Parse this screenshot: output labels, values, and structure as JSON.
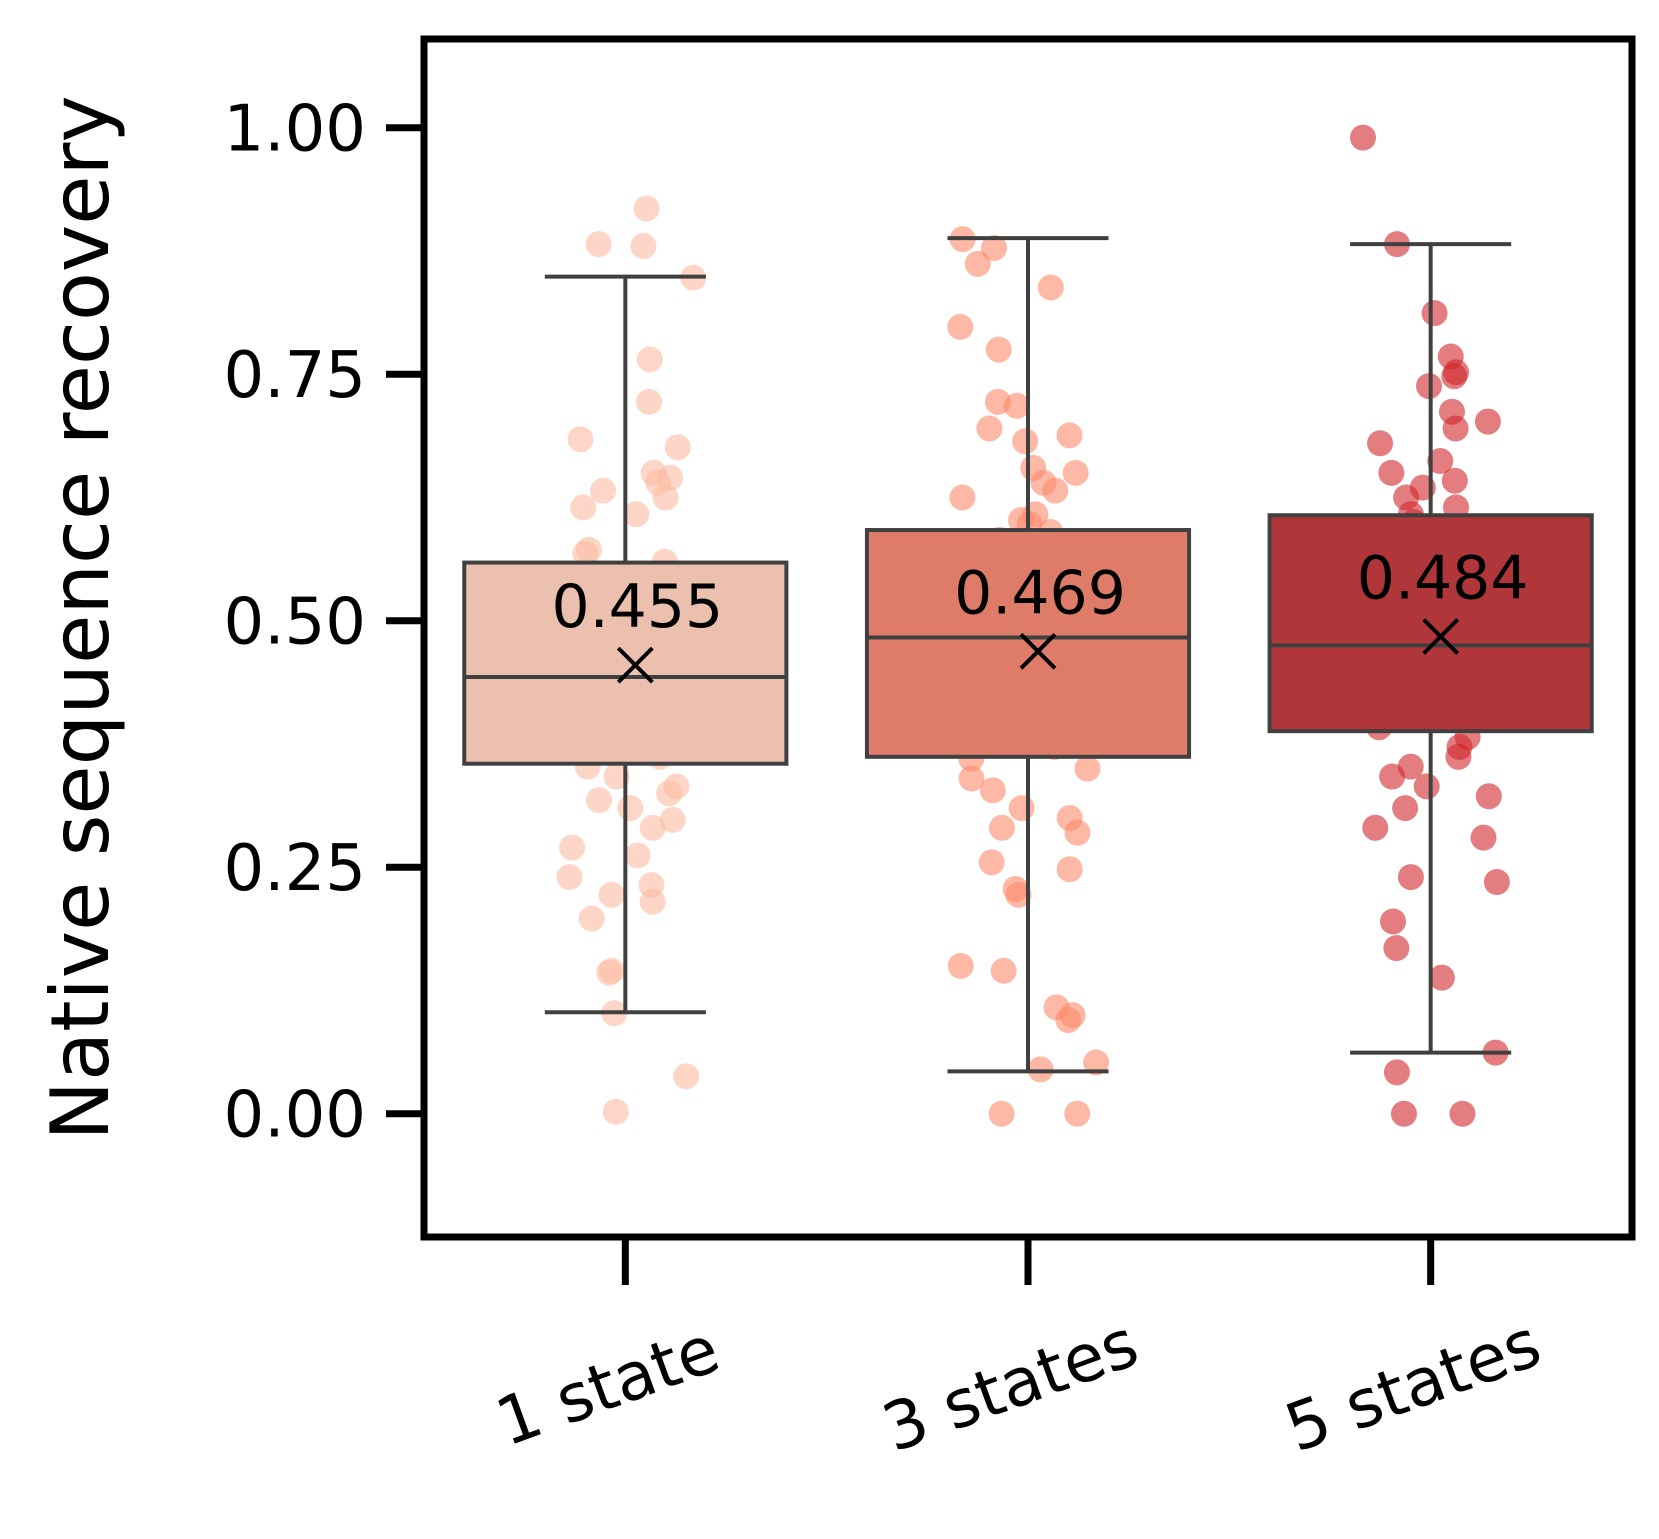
{
  "chart_data": {
    "type": "box",
    "title": "",
    "xlabel": "",
    "ylabel": "Native sequence recovery",
    "ylim": [
      -0.125,
      1.09
    ],
    "yticks": [
      0.0,
      0.25,
      0.5,
      0.75,
      1.0
    ],
    "ytick_labels": [
      "0.00",
      "0.25",
      "0.50",
      "0.75",
      "1.00"
    ],
    "categories": [
      "1 state",
      "3 states",
      "5 states"
    ],
    "series": [
      {
        "name": "1 state",
        "color": "#ecc0ae",
        "point_color": "#fcbba1",
        "q1": 0.355,
        "median": 0.443,
        "q3": 0.559,
        "whisker_low": 0.103,
        "whisker_high": 0.849,
        "mean": 0.455,
        "mean_label": "0.455",
        "points": [
          0.918,
          0.882,
          0.88,
          0.848,
          0.765,
          0.722,
          0.684,
          0.676,
          0.65,
          0.645,
          0.64,
          0.632,
          0.625,
          0.615,
          0.608,
          0.572,
          0.568,
          0.56,
          0.548,
          0.54,
          0.53,
          0.518,
          0.505,
          0.495,
          0.48,
          0.47,
          0.462,
          0.455,
          0.448,
          0.44,
          0.43,
          0.42,
          0.412,
          0.405,
          0.398,
          0.39,
          0.38,
          0.37,
          0.362,
          0.352,
          0.342,
          0.332,
          0.325,
          0.318,
          0.31,
          0.298,
          0.29,
          0.27,
          0.262,
          0.24,
          0.232,
          0.222,
          0.215,
          0.198,
          0.143,
          0.145,
          0.102,
          0.038,
          0.002
        ]
      },
      {
        "name": "3 states",
        "color": "#de7b69",
        "point_color": "#fc8a6a",
        "q1": 0.362,
        "median": 0.483,
        "q3": 0.592,
        "whisker_low": 0.043,
        "whisker_high": 0.888,
        "mean": 0.469,
        "mean_label": "0.469",
        "points": [
          0.887,
          0.878,
          0.862,
          0.838,
          0.798,
          0.775,
          0.722,
          0.718,
          0.695,
          0.688,
          0.682,
          0.655,
          0.65,
          0.64,
          0.632,
          0.625,
          0.608,
          0.602,
          0.598,
          0.59,
          0.582,
          0.575,
          0.565,
          0.555,
          0.548,
          0.54,
          0.532,
          0.522,
          0.51,
          0.5,
          0.49,
          0.482,
          0.472,
          0.462,
          0.452,
          0.442,
          0.432,
          0.42,
          0.41,
          0.4,
          0.39,
          0.38,
          0.372,
          0.36,
          0.35,
          0.34,
          0.328,
          0.31,
          0.3,
          0.29,
          0.285,
          0.255,
          0.248,
          0.228,
          0.222,
          0.15,
          0.145,
          0.108,
          0.1,
          0.095,
          0.052,
          0.045,
          0.0,
          0.0
        ]
      },
      {
        "name": "5 states",
        "color": "#b0363a",
        "point_color": "#d0262c",
        "q1": 0.388,
        "median": 0.475,
        "q3": 0.607,
        "whisker_low": 0.062,
        "whisker_high": 0.882,
        "mean": 0.484,
        "mean_label": "0.484",
        "points": [
          0.99,
          0.882,
          0.812,
          0.768,
          0.752,
          0.748,
          0.738,
          0.712,
          0.702,
          0.695,
          0.68,
          0.662,
          0.65,
          0.642,
          0.635,
          0.625,
          0.615,
          0.608,
          0.6,
          0.592,
          0.582,
          0.572,
          0.562,
          0.552,
          0.542,
          0.53,
          0.52,
          0.51,
          0.5,
          0.49,
          0.48,
          0.47,
          0.46,
          0.452,
          0.445,
          0.438,
          0.428,
          0.42,
          0.412,
          0.402,
          0.392,
          0.382,
          0.372,
          0.362,
          0.352,
          0.342,
          0.332,
          0.322,
          0.31,
          0.29,
          0.28,
          0.24,
          0.235,
          0.195,
          0.168,
          0.138,
          0.062,
          0.042,
          0.0,
          0.0
        ]
      }
    ]
  }
}
